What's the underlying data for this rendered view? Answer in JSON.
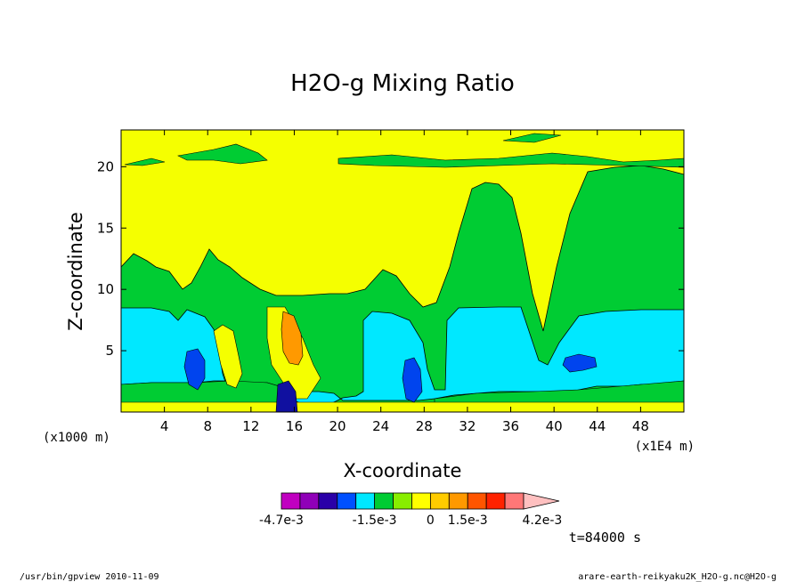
{
  "chart_data": {
    "type": "heatmap",
    "title": "H2O-g Mixing Ratio",
    "xlabel": "X-coordinate",
    "ylabel": "Z-coordinate",
    "x_unit_left": "(x1000 m)",
    "x_unit_right": "(x1E4 m)",
    "xlim": [
      0,
      52
    ],
    "ylim": [
      0,
      23
    ],
    "x_ticks": [
      "4",
      "8",
      "12",
      "16",
      "20",
      "24",
      "28",
      "32",
      "36",
      "40",
      "44",
      "48"
    ],
    "x_tick_values": [
      4,
      8,
      12,
      16,
      20,
      24,
      28,
      32,
      36,
      40,
      44,
      48
    ],
    "y_ticks": [
      "5",
      "10",
      "15",
      "20"
    ],
    "y_tick_values": [
      5,
      10,
      15,
      20
    ],
    "time_label": "t=84000 s",
    "colorbar": {
      "colors": [
        "#c000c0",
        "#9000b8",
        "#2a00a8",
        "#0050ff",
        "#00e8ff",
        "#00cc33",
        "#88ee00",
        "#ffff00",
        "#ffcc00",
        "#ff9900",
        "#ff5500",
        "#ff2200",
        "#ff7777",
        "#ffc0c0"
      ],
      "labels": [
        "-4.7e-3",
        "-1.5e-3",
        "0",
        "1.5e-3",
        "4.2e-3"
      ],
      "label_positions": [
        0,
        5,
        8,
        10,
        14
      ]
    },
    "regions": [
      {
        "level": "yellow",
        "color": "#f5ff00",
        "description_value": "~0"
      },
      {
        "level": "green",
        "color": "#00cc33"
      },
      {
        "level": "cyan",
        "color": "#00e8ff"
      },
      {
        "level": "blue",
        "color": "#0044ee"
      },
      {
        "level": "navy",
        "color": "#1010a0"
      },
      {
        "level": "orange",
        "color": "#ff9900"
      }
    ]
  },
  "footer": {
    "left": "/usr/bin/gpview   2010-11-09",
    "right": "arare-earth-reikyaku2K_H2O-g.nc@H2O-g"
  }
}
